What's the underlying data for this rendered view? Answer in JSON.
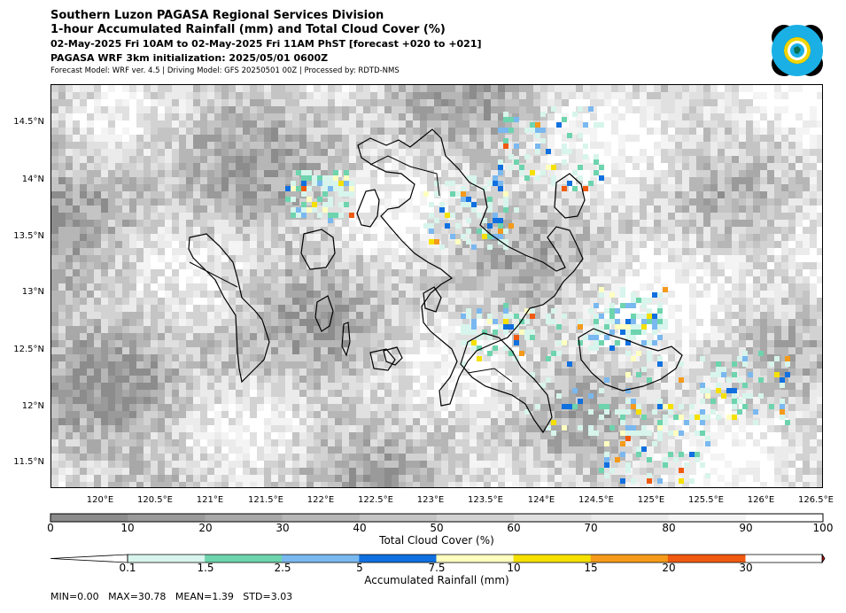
{
  "header": {
    "line1": "Southern Luzon PAGASA Regional Services Division",
    "line2": "1-hour Accumulated Rainfall (mm) and Total Cloud Cover (%)",
    "line3": "02-May-2025 Fri 10AM to 02-May-2025 Fri 11AM PhST [forecast +020 to +021]",
    "line4": "PAGASA WRF 3km initialization: 2025/05/01 0600Z",
    "line5": "Forecast Model: WRF ver. 4.5 | Driving Model: GFS 20250501 00Z | Processed by: RDTD-NMS"
  },
  "logo": {
    "icon": "pagasa-logo",
    "colors": [
      "#000000",
      "#1ab0e6",
      "#f2d600"
    ]
  },
  "map": {
    "lat_labels": [
      "14.5°N",
      "14°N",
      "13.5°N",
      "13°N",
      "12.5°N",
      "12°N",
      "11.5°N"
    ],
    "lon_labels": [
      "120°E",
      "120.5°E",
      "121°E",
      "121.5°E",
      "122°E",
      "122.5°E",
      "123°E",
      "123.5°E",
      "124°E",
      "124.5°E",
      "125°E",
      "125.5°E",
      "126°E",
      "126.5°E"
    ]
  },
  "cloud_colorbar": {
    "title": "Total Cloud Cover (%)",
    "ticks": [
      "0",
      "10",
      "20",
      "30",
      "40",
      "50",
      "60",
      "70",
      "80",
      "90",
      "100"
    ],
    "colors": [
      "#8c8c8c",
      "#9a9a9a",
      "#a8a8a8",
      "#b6b6b6",
      "#c4c4c4",
      "#d2d2d2",
      "#e0e0e0",
      "#ebebeb",
      "#f4f4f4",
      "#ffffff"
    ]
  },
  "rain_colorbar": {
    "title": "Accumulated Rainfall (mm)",
    "ticks": [
      "0.1",
      "1.5",
      "2.5",
      "5",
      "7.5",
      "10",
      "15",
      "20",
      "30"
    ],
    "colors": [
      "#ffffff",
      "#d7f5ec",
      "#6dd4ae",
      "#7ab8f0",
      "#1070e0",
      "#ffffc0",
      "#f5e000",
      "#f59a1a",
      "#f05a10",
      "#c01010"
    ]
  },
  "stats": "MIN=0.00   MAX=30.78   MEAN=1.39   STD=3.03"
}
